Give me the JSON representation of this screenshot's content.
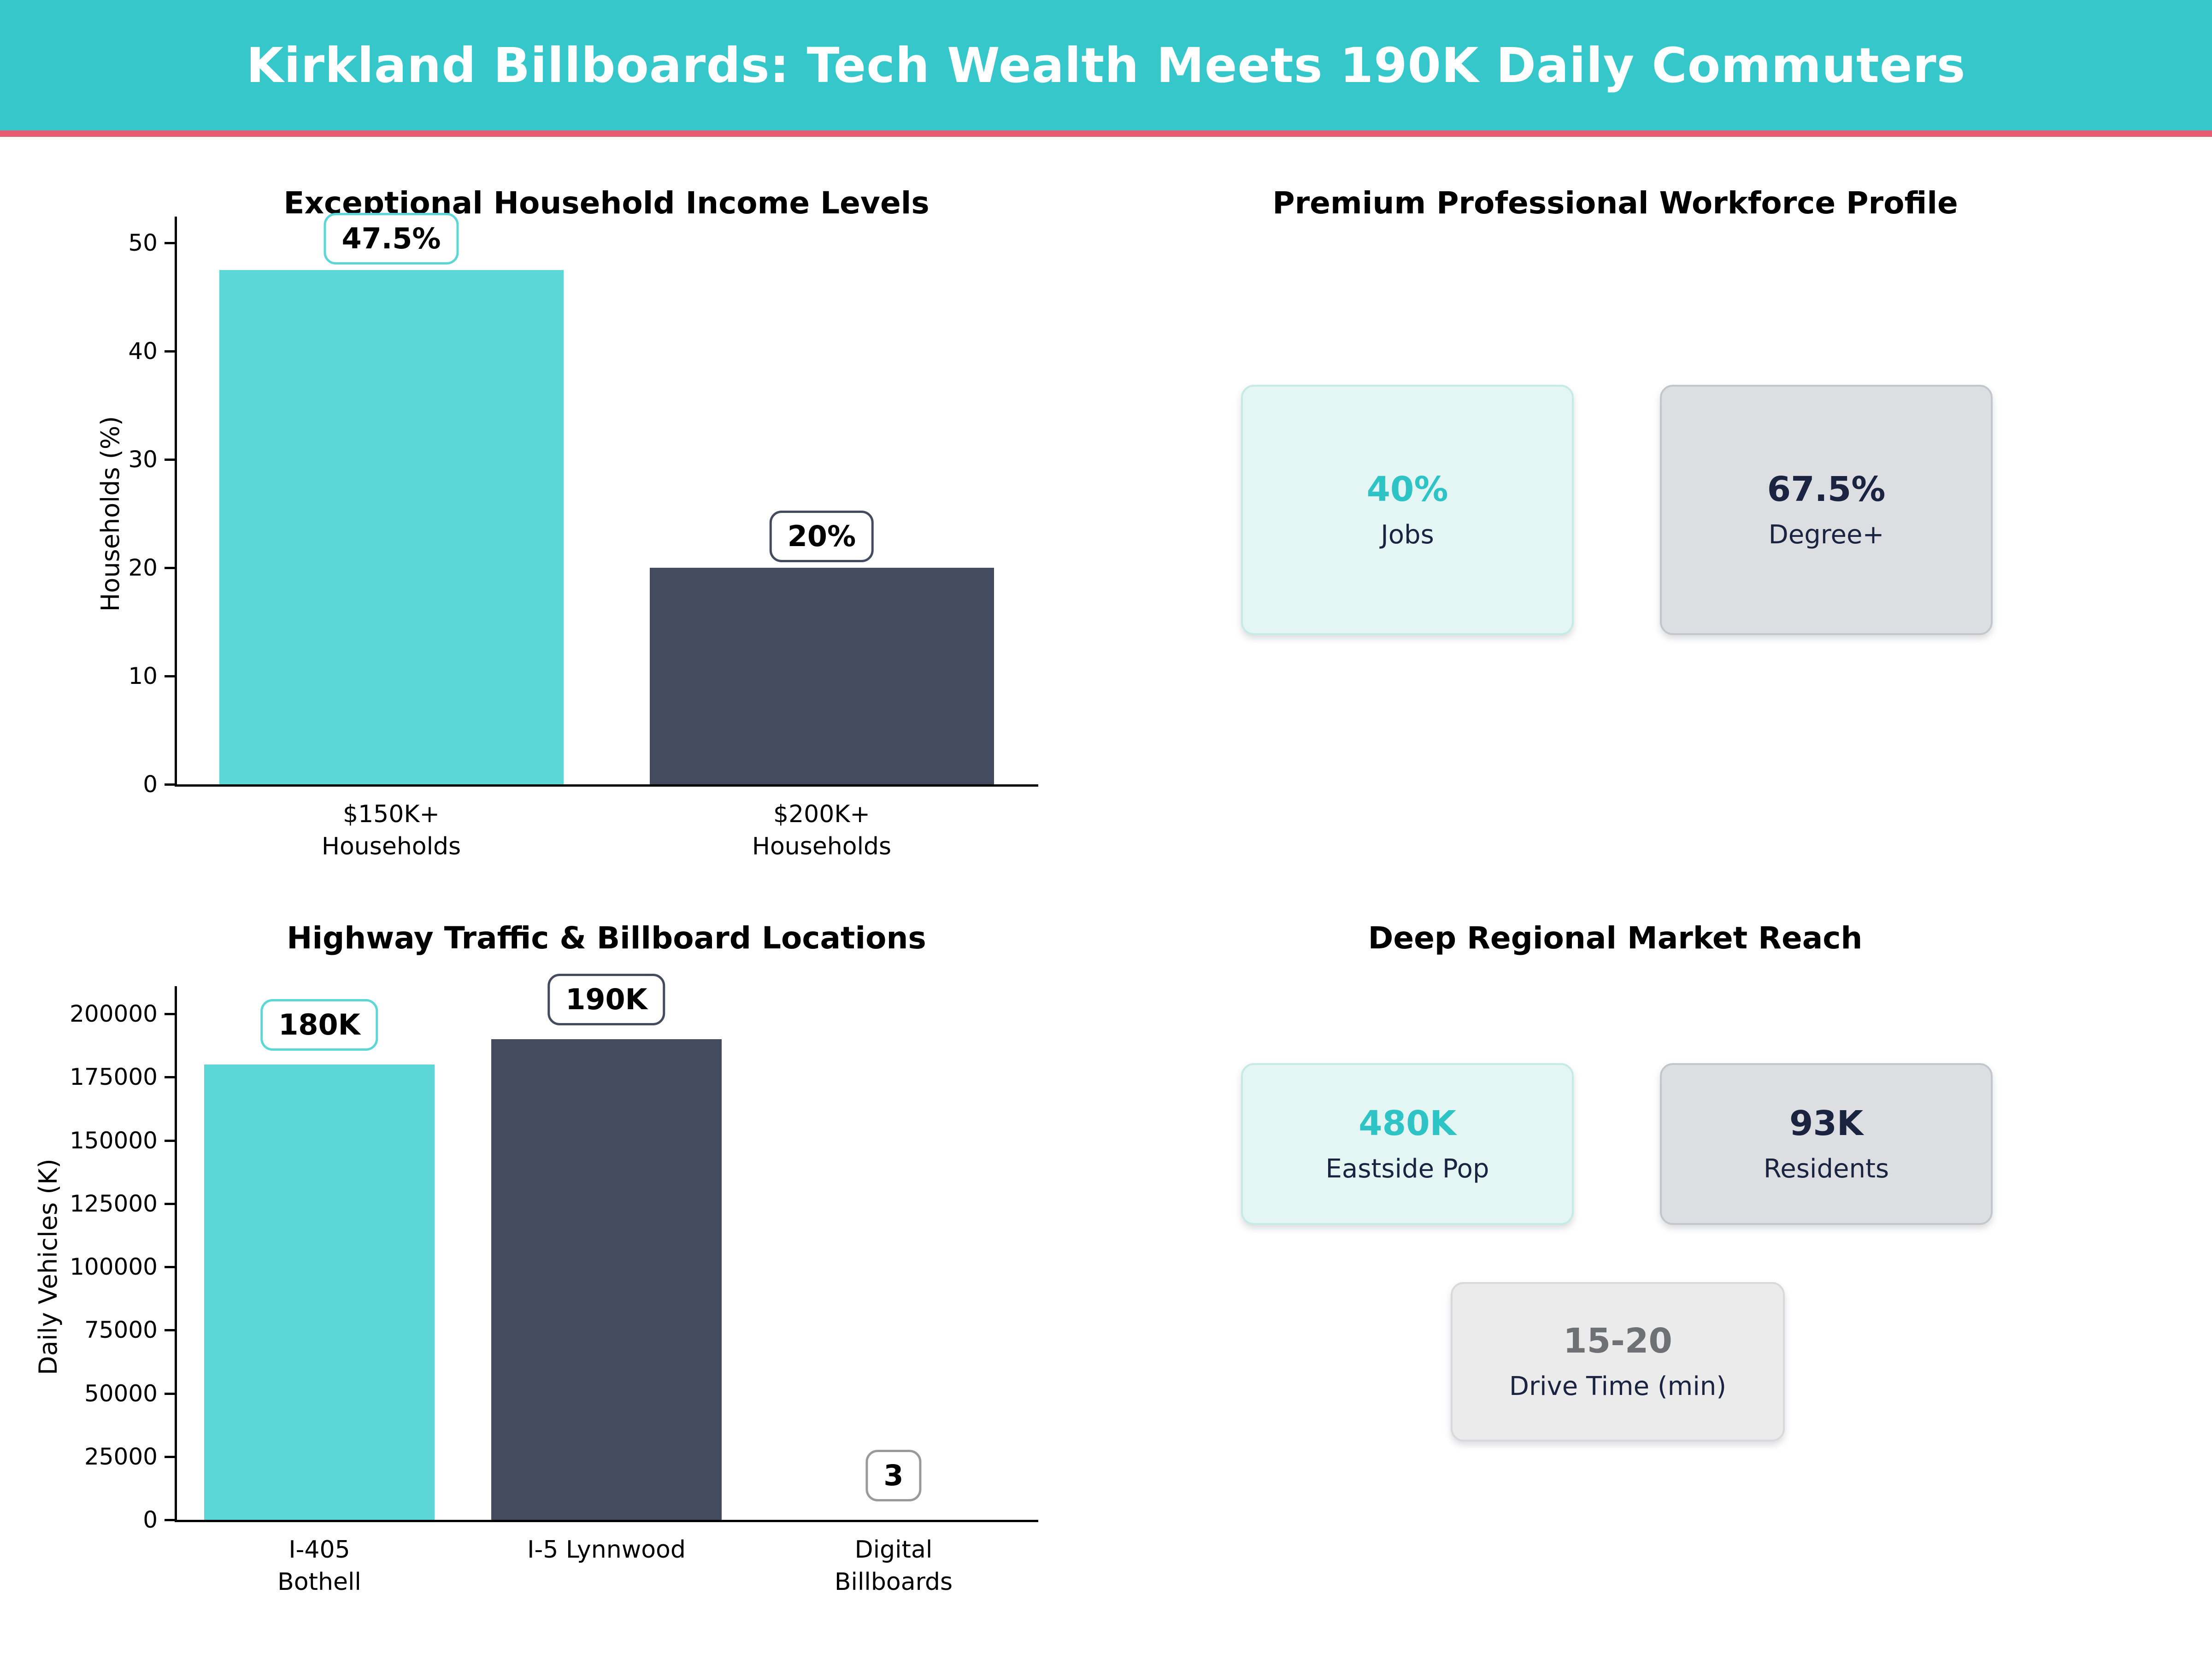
{
  "header": {
    "title": "Kirkland Billboards: Tech Wealth Meets 190K Daily Commuters"
  },
  "colors": {
    "header_bg": "#35c7ca",
    "divider_pink": "#e85c72",
    "bar_teal": "#5cd6d6",
    "bar_dark": "#454b5f",
    "badge_border_teal": "#5cd6d6",
    "badge_border_dark": "#454b5f",
    "badge_border_gray": "#9a9a9a",
    "value_teal": "#2ec4c6",
    "text_navy": "#1a2340",
    "value_muted_gray": "#6f7073"
  },
  "chart_data": [
    {
      "type": "bar",
      "title": "Exceptional Household Income Levels",
      "categories": [
        "$150K+\nHouseholds",
        "$200K+\nHouseholds"
      ],
      "values": [
        47.5,
        20
      ],
      "series": [
        {
          "name": "Households",
          "values": [
            47.5,
            20
          ]
        }
      ],
      "value_labels": [
        "47.5%",
        "20%"
      ],
      "bar_color_keys": [
        "teal",
        "dark"
      ],
      "badge_border_keys": [
        "teal",
        "dark"
      ],
      "xlabel": "",
      "ylabel": "Households (%)",
      "ylim": [
        0,
        50
      ],
      "yticks": [
        0,
        10,
        20,
        30,
        40,
        50
      ],
      "grid": false,
      "legend_position": "none"
    },
    {
      "type": "bar",
      "title": "Highway Traffic & Billboard Locations",
      "categories": [
        "I-405\nBothell",
        "I-5 Lynnwood",
        "Digital\nBillboards"
      ],
      "values": [
        180000,
        190000,
        3
      ],
      "series": [
        {
          "name": "Daily Vehicles",
          "values": [
            180000,
            190000,
            3
          ]
        }
      ],
      "value_labels": [
        "180K",
        "190K",
        "3"
      ],
      "bar_color_keys": [
        "teal",
        "dark",
        "teal"
      ],
      "badge_border_keys": [
        "teal",
        "dark",
        "gray"
      ],
      "xlabel": "",
      "ylabel": "Daily Vehicles (K)",
      "ylim": [
        0,
        200000
      ],
      "yticks": [
        0,
        25000,
        50000,
        75000,
        100000,
        125000,
        150000,
        175000,
        200000
      ],
      "grid": false,
      "legend_position": "none"
    }
  ],
  "stat_panels": [
    {
      "title": "Premium Professional Workforce Profile",
      "cards": [
        {
          "value": "40%",
          "label": "Jobs",
          "style": "mint",
          "value_color": "teal"
        },
        {
          "value": "67.5%",
          "label": "Degree+",
          "style": "gray",
          "value_color": "navy"
        }
      ]
    },
    {
      "title": "Deep Regional Market Reach",
      "cards": [
        {
          "value": "480K",
          "label": "Eastside Pop",
          "style": "mint",
          "value_color": "teal"
        },
        {
          "value": "93K",
          "label": "Residents",
          "style": "gray",
          "value_color": "navy"
        },
        {
          "value": "15-20",
          "label": "Drive Time (min)",
          "style": "light",
          "value_color": "muted"
        }
      ]
    }
  ]
}
